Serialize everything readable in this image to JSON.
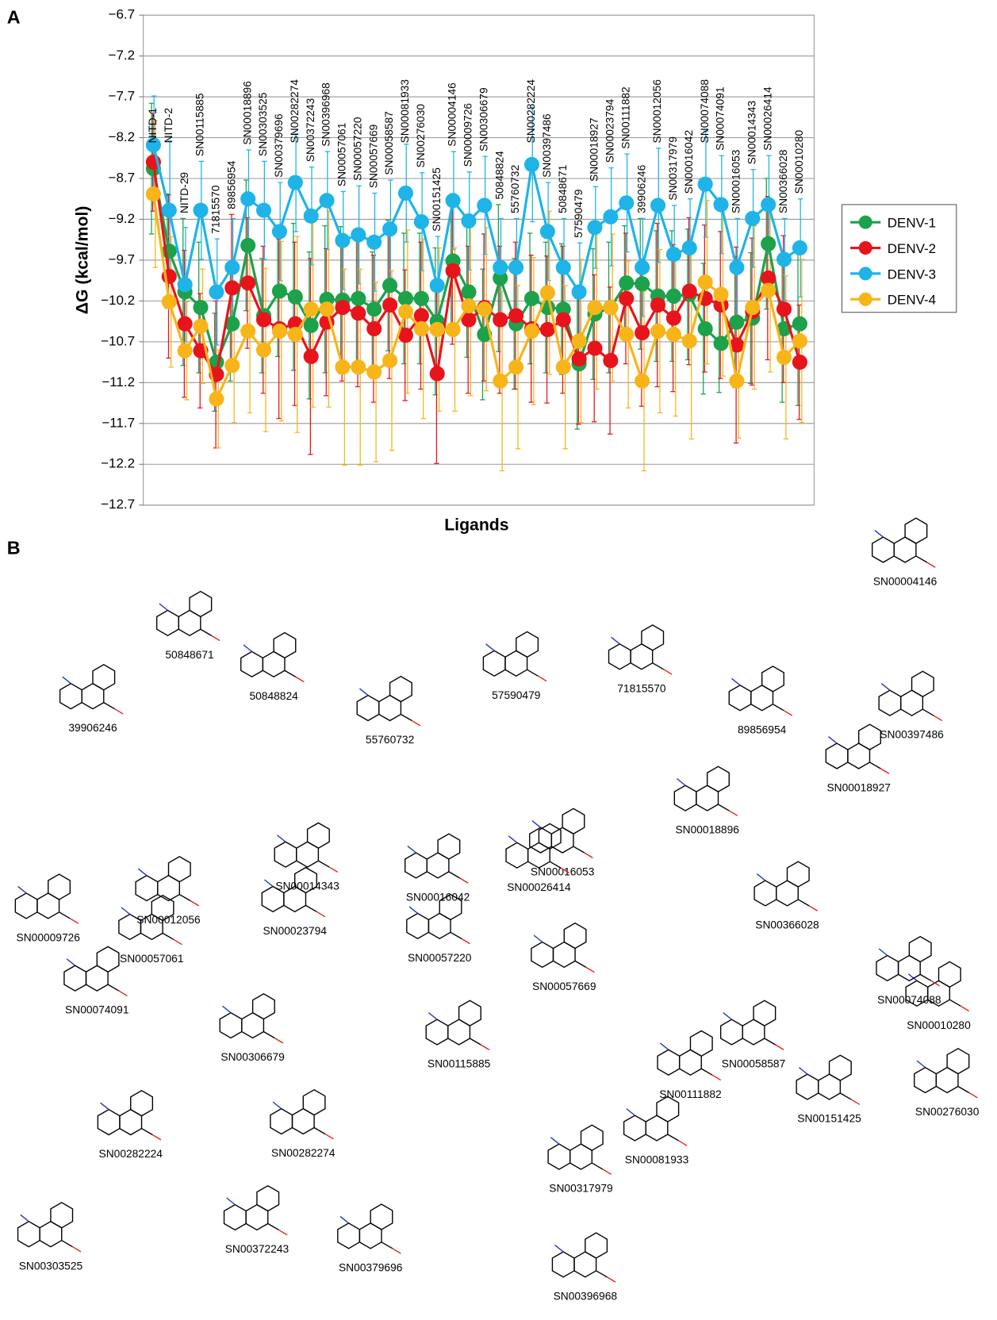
{
  "panel_labels": [
    "A",
    "B"
  ],
  "chart_data": {
    "type": "line",
    "y_label": "ΔG (kcal/mol)",
    "x_label": "Ligands",
    "categories": [
      "NITD-1",
      "NITD-2",
      "NITD-29",
      "SN00115885",
      "71815570",
      "89856954",
      "SN00018896",
      "SN00303525",
      "SN00379696",
      "SN00282274",
      "SN00372243",
      "SN00396968",
      "SN00057061",
      "SN00057220",
      "SN00057669",
      "SN00058587",
      "SN00081933",
      "SN00276030",
      "SN00151425",
      "SN00004146",
      "SN00009726",
      "SN00306679",
      "50848824",
      "55760732",
      "SN00282224",
      "SN00397486",
      "50848671",
      "57590479",
      "SN00018927",
      "SN00023794",
      "SN00111882",
      "39906246",
      "SN00012056",
      "SN00317979",
      "SN00016042",
      "SN00074088",
      "SN00074091",
      "SN00016053",
      "SN00014343",
      "SN00026414",
      "SN00366028",
      "SN00010280"
    ],
    "ylim": [
      -12.7,
      -6.7
    ],
    "yticks": [
      {
        "value": -6.7,
        "label": "−6.7"
      },
      {
        "value": -7.2,
        "label": "−7.2"
      },
      {
        "value": -7.7,
        "label": "−7.7"
      },
      {
        "value": -8.2,
        "label": "−8.2"
      },
      {
        "value": -8.7,
        "label": "−8.7"
      },
      {
        "value": -9.2,
        "label": "−9.2"
      },
      {
        "value": -9.7,
        "label": "−9.7"
      },
      {
        "value": -10.2,
        "label": "−10.2"
      },
      {
        "value": -10.7,
        "label": "−10.7"
      },
      {
        "value": -11.2,
        "label": "−11.2"
      },
      {
        "value": -11.7,
        "label": "−11.7"
      },
      {
        "value": -12.2,
        "label": "−12.2"
      },
      {
        "value": -12.7,
        "label": "−12.7"
      }
    ],
    "grid": true,
    "legend": "right",
    "series": [
      {
        "name": "DENV-1",
        "color": "#1ca24a",
        "values": [
          -8.58,
          -9.59,
          -10.09,
          -10.28,
          -10.95,
          -10.48,
          -9.52,
          -10.38,
          -10.08,
          -10.15,
          -10.5,
          -10.18,
          -10.19,
          -10.17,
          -10.3,
          -10.01,
          -10.17,
          -10.17,
          -10.45,
          -9.71,
          -10.09,
          -10.61,
          -9.92,
          -10.48,
          -10.17,
          -10.28,
          -10.3,
          -10.97,
          -10.36,
          -10.28,
          -9.98,
          -9.99,
          -10.14,
          -10.14,
          -10.12,
          -10.54,
          -10.72,
          -10.46,
          -10.41,
          -9.5,
          -10.54,
          -10.48
        ],
        "errors": [
          0.8,
          0.7,
          0.9,
          0.8,
          0.6,
          0.7,
          0.8,
          0.7,
          0.8,
          0.9,
          0.9,
          0.9,
          0.9,
          0.8,
          0.7,
          0.8,
          0.8,
          0.8,
          0.9,
          0.8,
          0.8,
          0.8,
          0.9,
          0.8,
          0.8,
          0.8,
          0.8,
          0.8,
          0.8,
          0.8,
          0.7,
          0.8,
          0.8,
          0.8,
          0.8,
          0.8,
          0.6,
          0.8,
          0.8,
          0.8,
          0.9,
          1.0
        ]
      },
      {
        "name": "DENV-2",
        "color": "#e8141c",
        "values": [
          -8.5,
          -9.9,
          -10.48,
          -10.81,
          -11.1,
          -10.04,
          -9.98,
          -10.43,
          -10.54,
          -10.48,
          -10.88,
          -10.46,
          -10.28,
          -10.35,
          -10.54,
          -10.25,
          -10.62,
          -10.38,
          -11.09,
          -9.83,
          -10.43,
          -10.28,
          -10.43,
          -10.38,
          -10.54,
          -10.55,
          -10.43,
          -10.91,
          -10.78,
          -10.93,
          -10.17,
          -10.59,
          -10.25,
          -10.41,
          -10.08,
          -10.17,
          -10.25,
          -10.74,
          -10.33,
          -9.92,
          -10.3,
          -10.95
        ],
        "errors": [
          0.6,
          1.0,
          0.9,
          0.7,
          0.9,
          0.9,
          0.8,
          0.9,
          1.1,
          1.0,
          1.2,
          0.9,
          0.9,
          0.9,
          0.9,
          0.9,
          0.8,
          0.9,
          1.1,
          0.9,
          0.9,
          0.9,
          0.9,
          0.9,
          0.9,
          0.9,
          0.9,
          0.8,
          0.9,
          0.9,
          0.8,
          0.9,
          1.0,
          0.9,
          0.9,
          0.9,
          0.9,
          1.2,
          0.9,
          1.0,
          0.9,
          0.7
        ]
      },
      {
        "name": "DENV-3",
        "color": "#1eb4e8",
        "values": [
          -8.29,
          -9.09,
          -10.0,
          -9.09,
          -10.09,
          -9.79,
          -8.95,
          -9.09,
          -9.35,
          -8.75,
          -9.16,
          -8.97,
          -9.46,
          -9.39,
          -9.48,
          -9.32,
          -8.88,
          -9.23,
          -10.01,
          -8.97,
          -9.22,
          -9.03,
          -9.79,
          -9.79,
          -8.53,
          -9.35,
          -9.79,
          -10.09,
          -9.3,
          -9.17,
          -9.0,
          -9.79,
          -9.03,
          -9.63,
          -9.55,
          -8.77,
          -9.02,
          -9.79,
          -9.19,
          -9.02,
          -9.69,
          -9.55
        ],
        "errors": [
          0.6,
          0.85,
          0.7,
          0.6,
          0.65,
          0.6,
          0.6,
          0.6,
          0.6,
          0.6,
          0.6,
          0.6,
          0.6,
          0.6,
          0.6,
          0.6,
          0.6,
          0.6,
          0.6,
          0.6,
          0.6,
          0.6,
          0.6,
          0.6,
          0.7,
          0.6,
          0.6,
          0.6,
          0.5,
          0.6,
          0.6,
          0.6,
          0.7,
          0.6,
          0.6,
          0.65,
          0.6,
          0.6,
          0.6,
          0.6,
          0.5,
          0.6
        ]
      },
      {
        "name": "DENV-4",
        "color": "#f7b51a",
        "values": [
          -8.89,
          -10.21,
          -10.81,
          -10.51,
          -11.4,
          -10.99,
          -10.57,
          -10.8,
          -10.57,
          -10.61,
          -10.3,
          -10.3,
          -11.01,
          -11.01,
          -11.07,
          -10.93,
          -10.33,
          -10.54,
          -10.55,
          -10.55,
          -10.26,
          -10.3,
          -11.18,
          -11.01,
          -10.57,
          -10.1,
          -11.01,
          -10.69,
          -10.28,
          -10.28,
          -10.61,
          -11.18,
          -10.57,
          -10.61,
          -10.69,
          -9.97,
          -10.12,
          -11.18,
          -10.28,
          -10.07,
          -10.89,
          -10.69
        ],
        "errors": [
          0.9,
          0.8,
          0.6,
          0.7,
          0.6,
          0.7,
          1.0,
          1.0,
          1.1,
          1.2,
          1.2,
          1.2,
          1.2,
          1.2,
          1.1,
          1.1,
          1.0,
          1.1,
          1.0,
          1.0,
          1.1,
          1.0,
          1.1,
          1.0,
          0.9,
          1.0,
          1.0,
          1.0,
          1.0,
          0.9,
          0.9,
          1.1,
          1.0,
          1.0,
          1.2,
          1.0,
          1.0,
          0.7,
          1.0,
          1.0,
          1.0,
          1.0
        ]
      }
    ]
  },
  "structures": [
    {
      "label": "SN00004146"
    },
    {
      "label": "39906246"
    },
    {
      "label": "50848671"
    },
    {
      "label": "50848824"
    },
    {
      "label": "55760732"
    },
    {
      "label": "57590479"
    },
    {
      "label": "71815570"
    },
    {
      "label": "89856954"
    },
    {
      "label": "SN00397486"
    },
    {
      "label": "SN00018927"
    },
    {
      "label": "SN00009726"
    },
    {
      "label": "SN00012056"
    },
    {
      "label": "SN00014343"
    },
    {
      "label": "SN00016042"
    },
    {
      "label": "SN00016053"
    },
    {
      "label": "SN00018896"
    },
    {
      "label": "SN00026414"
    },
    {
      "label": "SN00023794"
    },
    {
      "label": "SN00057220"
    },
    {
      "label": "SN00057061"
    },
    {
      "label": "SN00366028"
    },
    {
      "label": "SN00010280"
    },
    {
      "label": "SN00057669"
    },
    {
      "label": "SN00074091"
    },
    {
      "label": "SN00306679"
    },
    {
      "label": "SN00115885"
    },
    {
      "label": "SN00111882"
    },
    {
      "label": "SN00058587"
    },
    {
      "label": "SN00074088"
    },
    {
      "label": "SN00151425"
    },
    {
      "label": "SN00276030"
    },
    {
      "label": "SN00282224"
    },
    {
      "label": "SN00282274"
    },
    {
      "label": "SN00081933"
    },
    {
      "label": "SN00317979"
    },
    {
      "label": "SN00303525"
    },
    {
      "label": "SN00372243"
    },
    {
      "label": "SN00379696"
    },
    {
      "label": "SN00396968"
    }
  ]
}
